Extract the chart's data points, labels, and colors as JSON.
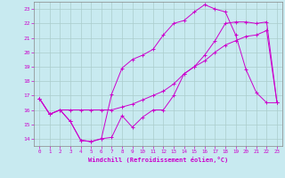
{
  "title": "",
  "xlabel": "Windchill (Refroidissement éolien,°C)",
  "ylabel": "",
  "bg_color": "#c8eaf0",
  "grid_color": "#aacccc",
  "line_color": "#cc00cc",
  "xlim": [
    -0.5,
    23.5
  ],
  "ylim": [
    13.5,
    23.5
  ],
  "xticks": [
    0,
    1,
    2,
    3,
    4,
    5,
    6,
    7,
    8,
    9,
    10,
    11,
    12,
    13,
    14,
    15,
    16,
    17,
    18,
    19,
    20,
    21,
    22,
    23
  ],
  "yticks": [
    14,
    15,
    16,
    17,
    18,
    19,
    20,
    21,
    22,
    23
  ],
  "line1_x": [
    0,
    1,
    2,
    3,
    4,
    5,
    6,
    7,
    8,
    9,
    10,
    11,
    12,
    13,
    14,
    15,
    16,
    17,
    18,
    19,
    20,
    21,
    22,
    23
  ],
  "line1_y": [
    16.8,
    15.7,
    16.0,
    15.2,
    13.9,
    13.8,
    14.0,
    14.1,
    15.6,
    14.8,
    15.5,
    16.0,
    16.0,
    17.0,
    18.5,
    19.0,
    19.4,
    20.0,
    20.5,
    20.8,
    21.1,
    21.2,
    21.5,
    16.5
  ],
  "line2_x": [
    0,
    1,
    2,
    3,
    4,
    5,
    6,
    7,
    8,
    9,
    10,
    11,
    12,
    13,
    14,
    15,
    16,
    17,
    18,
    19,
    20,
    21,
    22,
    23
  ],
  "line2_y": [
    16.8,
    15.7,
    16.0,
    16.0,
    16.0,
    16.0,
    16.0,
    16.0,
    16.2,
    16.4,
    16.7,
    17.0,
    17.3,
    17.8,
    18.5,
    19.0,
    19.8,
    20.8,
    22.0,
    22.1,
    22.1,
    22.0,
    22.1,
    16.5
  ],
  "line3_x": [
    0,
    1,
    2,
    3,
    4,
    5,
    6,
    7,
    8,
    9,
    10,
    11,
    12,
    13,
    14,
    15,
    16,
    17,
    18,
    19,
    20,
    21,
    22,
    23
  ],
  "line3_y": [
    16.8,
    15.7,
    16.0,
    15.2,
    13.9,
    13.8,
    14.0,
    17.1,
    18.9,
    19.5,
    19.8,
    20.2,
    21.2,
    22.0,
    22.2,
    22.8,
    23.3,
    23.0,
    22.8,
    21.2,
    18.8,
    17.2,
    16.5,
    16.5
  ]
}
